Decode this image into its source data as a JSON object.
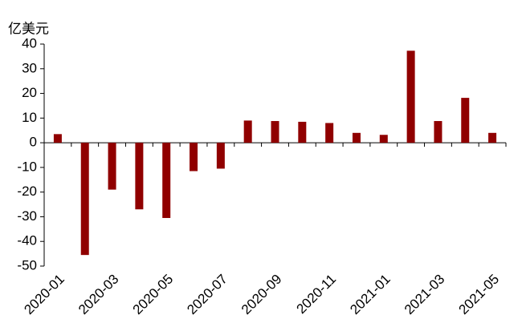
{
  "chart_data": {
    "type": "bar",
    "y_label": "亿美元",
    "categories": [
      "2020-01",
      null,
      "2020-03",
      null,
      "2020-05",
      null,
      "2020-07",
      null,
      "2020-09",
      null,
      "2020-11",
      null,
      "2021-01",
      null,
      "2021-03",
      null,
      "2021-05"
    ],
    "values": [
      3.5,
      -45.5,
      -19,
      -27,
      -30.5,
      -11.5,
      -10.5,
      9,
      8.8,
      8.5,
      8,
      4,
      3.2,
      37.3,
      8.8,
      18.2,
      4
    ],
    "color": "#900000",
    "ylim": [
      -50,
      40
    ],
    "yticks": [
      -50,
      -40,
      -30,
      -20,
      -10,
      0,
      10,
      20,
      30,
      40
    ],
    "grid": false
  }
}
